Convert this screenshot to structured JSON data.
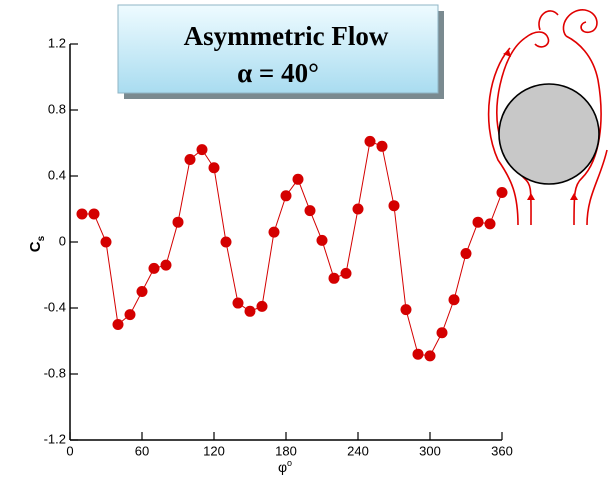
{
  "chart_data": {
    "type": "line",
    "annotations": [
      "Asymmetric Flow",
      "α = 40°"
    ],
    "xlabel": "φ",
    "xlabel_sup": "o",
    "ylabel": "C",
    "ylabel_sub": "s",
    "x": [
      10,
      20,
      30,
      40,
      50,
      60,
      70,
      80,
      90,
      100,
      110,
      120,
      130,
      140,
      150,
      160,
      170,
      180,
      190,
      200,
      210,
      220,
      230,
      240,
      250,
      260,
      270,
      280,
      290,
      300,
      310,
      320,
      330,
      340,
      350,
      360
    ],
    "series": [
      {
        "color": "#d40000",
        "values": [
          0.17,
          0.17,
          0.0,
          -0.5,
          -0.44,
          -0.3,
          -0.16,
          -0.14,
          0.12,
          0.5,
          0.56,
          0.45,
          0.0,
          -0.37,
          -0.42,
          -0.39,
          0.06,
          0.28,
          0.38,
          0.19,
          0.01,
          -0.22,
          -0.19,
          0.2,
          0.61,
          0.58,
          0.22,
          -0.41,
          -0.68,
          -0.69,
          -0.55,
          -0.35,
          -0.07,
          0.12,
          0.11,
          0.3
        ]
      }
    ],
    "xlim": [
      0,
      360
    ],
    "xticks": [
      0,
      60,
      120,
      180,
      240,
      300,
      360
    ],
    "ylim": [
      -1.2,
      1.2
    ],
    "yticks": [
      -1.2,
      -0.8,
      -0.4,
      0,
      0.4,
      0.8,
      1.2
    ]
  }
}
